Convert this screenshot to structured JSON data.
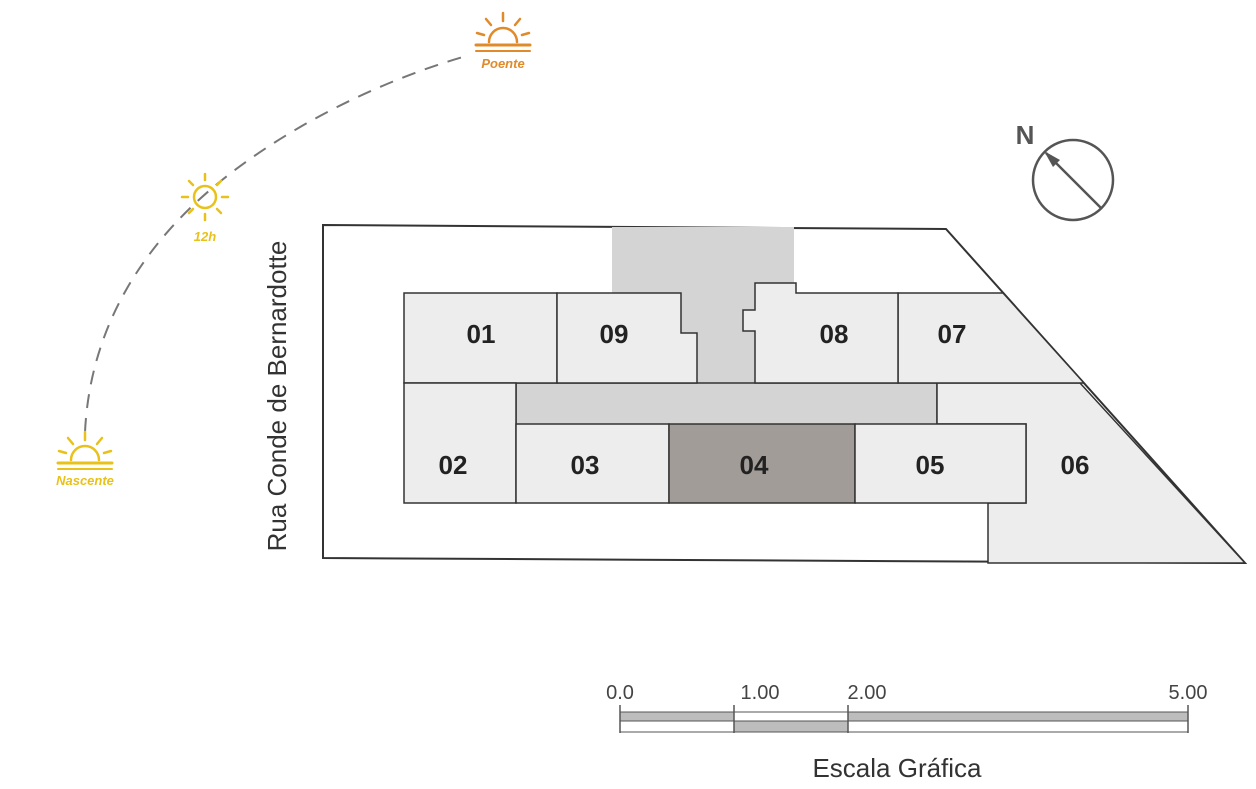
{
  "street_name": "Rua Conde de Bernardotte",
  "north_label": "N",
  "sun": {
    "sunrise_label": "Nascente",
    "noon_label": "12h",
    "sunset_label": "Poente",
    "sunrise_color": "#e8c21a",
    "noon_color": "#e8c21a",
    "sunset_color": "#e08a2a"
  },
  "units": {
    "u01": "01",
    "u02": "02",
    "u03": "03",
    "u04": "04",
    "u05": "05",
    "u06": "06",
    "u07": "07",
    "u08": "08",
    "u09": "09"
  },
  "highlighted_unit": "04",
  "colors": {
    "unit_fill": "#ededed",
    "corridor_fill": "#d4d4d4",
    "highlight_fill": "#a29c98",
    "outline": "#333333"
  },
  "scale": {
    "title": "Escala Gráfica",
    "ticks": [
      "0.0",
      "1.00",
      "2.00",
      "5.00"
    ]
  }
}
